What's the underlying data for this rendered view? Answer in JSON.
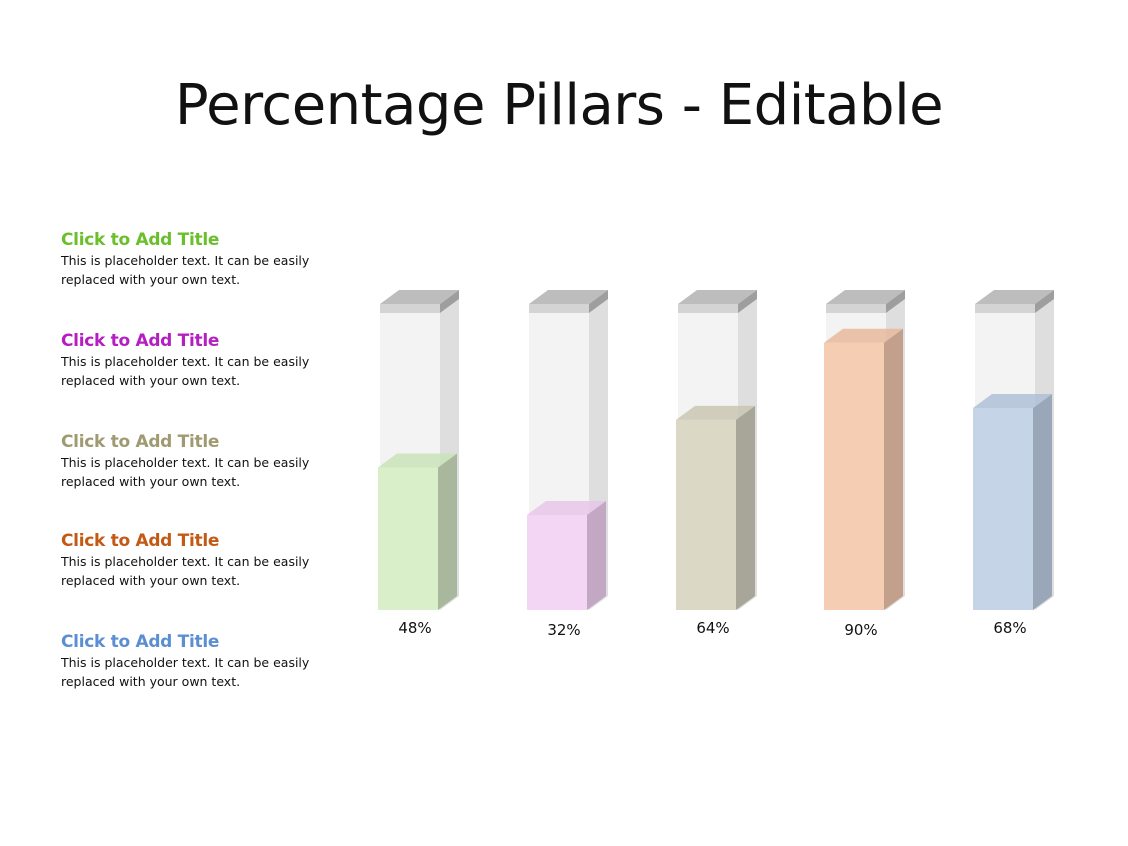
{
  "title": "Percentage Pillars - Editable",
  "legend": [
    {
      "title": "Click to Add Title",
      "text": "This is placeholder text. It can be easily replaced with your own text.",
      "color": "#6abf2b"
    },
    {
      "title": "Click to Add Title",
      "text": "This is placeholder text. It can be easily replaced with your own text.",
      "color": "#b51ec0"
    },
    {
      "title": "Click to Add Title",
      "text": "This is placeholder text. It can be easily replaced with your own text.",
      "color": "#a09a72"
    },
    {
      "title": "Click to Add Title",
      "text": "This is placeholder text. It can be easily replaced with your own text.",
      "color": "#c25a16"
    },
    {
      "title": "Click to Add Title",
      "text": "This is placeholder text. It can be easily replaced with your own text.",
      "color": "#5b8fd1"
    }
  ],
  "chart_data": {
    "type": "bar",
    "values": [
      48,
      32,
      64,
      90,
      68
    ],
    "labels": [
      "48%",
      "32%",
      "64%",
      "90%",
      "68%"
    ],
    "ylim": [
      0,
      100
    ],
    "colors": [
      {
        "front": "#d8efca",
        "side": "#a9b89d",
        "top": "#c9e3b8"
      },
      {
        "front": "#f2d6f3",
        "side": "#c3a8c4",
        "top": "#e8c4e9"
      },
      {
        "front": "#dbd8c6",
        "side": "#a8a699",
        "top": "#c9c6b3"
      },
      {
        "front": "#f4cdb2",
        "side": "#c3a08b",
        "top": "#e6b99b"
      },
      {
        "front": "#c5d5e7",
        "side": "#9aa7b8",
        "top": "#aebfd6"
      }
    ],
    "grid": false
  }
}
